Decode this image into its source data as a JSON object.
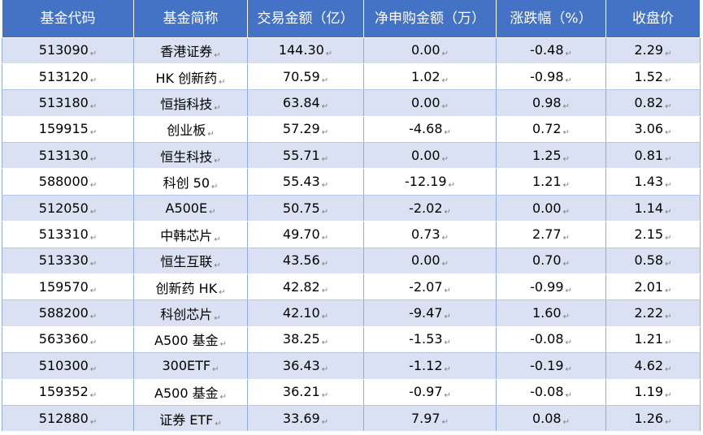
{
  "header": {
    "columns": [
      "基金代码",
      "基金简称",
      "交易金额（亿）",
      "净申购金额（万）",
      "涨跌幅（%）",
      "收盘价"
    ]
  },
  "para_mark": "↵",
  "rows": [
    {
      "code": "513090",
      "name": "香港证券",
      "amount": "144.30",
      "net_purchase": "0.00",
      "change": "-0.48",
      "close": "2.29"
    },
    {
      "code": "513120",
      "name": "HK 创新药",
      "amount": "70.59",
      "net_purchase": "1.02",
      "change": "-0.98",
      "close": "1.52"
    },
    {
      "code": "513180",
      "name": "恒指科技",
      "amount": "63.84",
      "net_purchase": "0.00",
      "change": "0.98",
      "close": "0.82"
    },
    {
      "code": "159915",
      "name": "创业板",
      "amount": "57.29",
      "net_purchase": "-4.68",
      "change": "0.72",
      "close": "3.06"
    },
    {
      "code": "513130",
      "name": "恒生科技",
      "amount": "55.71",
      "net_purchase": "0.00",
      "change": "1.25",
      "close": "0.81"
    },
    {
      "code": "588000",
      "name": "科创 50",
      "amount": "55.43",
      "net_purchase": "-12.19",
      "change": "1.21",
      "close": "1.43"
    },
    {
      "code": "512050",
      "name": "A500E",
      "amount": "50.75",
      "net_purchase": "-2.02",
      "change": "0.00",
      "close": "1.14"
    },
    {
      "code": "513310",
      "name": "中韩芯片",
      "amount": "49.70",
      "net_purchase": "0.73",
      "change": "2.77",
      "close": "2.15"
    },
    {
      "code": "513330",
      "name": "恒生互联",
      "amount": "43.56",
      "net_purchase": "0.00",
      "change": "0.70",
      "close": "0.58"
    },
    {
      "code": "159570",
      "name": "创新药 HK",
      "amount": "42.82",
      "net_purchase": "-2.07",
      "change": "-0.99",
      "close": "2.01"
    },
    {
      "code": "588200",
      "name": "科创芯片",
      "amount": "42.10",
      "net_purchase": "-9.47",
      "change": "1.60",
      "close": "2.22"
    },
    {
      "code": "563360",
      "name": "A500 基金",
      "amount": "38.25",
      "net_purchase": "-1.53",
      "change": "-0.08",
      "close": "1.21"
    },
    {
      "code": "510300",
      "name": "300ETF",
      "amount": "36.43",
      "net_purchase": "-1.12",
      "change": "-0.19",
      "close": "4.62"
    },
    {
      "code": "159352",
      "name": "A500 基金",
      "amount": "36.21",
      "net_purchase": "-0.97",
      "change": "-0.08",
      "close": "1.19"
    },
    {
      "code": "512880",
      "name": "证券 ETF",
      "amount": "33.69",
      "net_purchase": "7.97",
      "change": "0.08",
      "close": "1.26"
    }
  ]
}
